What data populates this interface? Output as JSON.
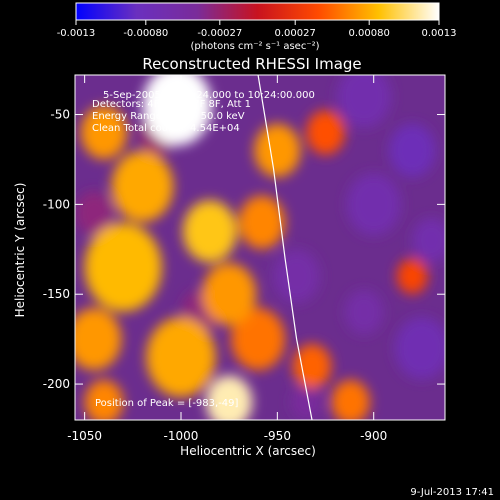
{
  "colorbar": {
    "tick_labels": [
      "-0.0013",
      "-0.00080",
      "-0.00027",
      "0.00027",
      "0.00080",
      "0.0013"
    ],
    "tick_values": [
      -0.0013,
      -0.0008,
      -0.00027,
      0.00027,
      0.0008,
      0.0013
    ],
    "range": [
      -0.0013,
      0.0013
    ],
    "unit_label": "(photons cm⁻² s⁻¹ asec⁻²)",
    "colormap": [
      "#0000ff",
      "#6a2fbf",
      "#7a2c9a",
      "#c8121f",
      "#ff4a00",
      "#ffc000",
      "#ffffff"
    ]
  },
  "chart_data": {
    "type": "heatmap",
    "title": "Reconstructed RHESSI Image",
    "xlabel": "Heliocentric X (arcsec)",
    "ylabel": "Heliocentric Y (arcsec)",
    "xlim": [
      -1055,
      -863
    ],
    "ylim": [
      -220,
      -28
    ],
    "x_ticks": [
      -1050,
      -1000,
      -950,
      -900
    ],
    "x_tick_labels": [
      "-1050",
      "-1000",
      "-950",
      "-900"
    ],
    "y_ticks": [
      -200,
      -150,
      -100,
      -50
    ],
    "y_tick_labels": [
      "-200",
      "-150",
      "-100",
      "-50"
    ],
    "annotations": [
      "5-Sep-2005 10:22:24.000 to 10:24:00.000",
      "Detectors: 4F 5F 6F 7F 8F, Att 1",
      "Energy Range: 25.0 - 50.0 keV",
      "Clean    Total counts: 4.54E+04"
    ],
    "peak_label": "Position of Peak = [-983,-49]",
    "peak": {
      "x": -983,
      "y": -49
    },
    "limb_curve": [
      [
        -960,
        -28
      ],
      [
        -952,
        -80
      ],
      [
        -946,
        -130
      ],
      [
        -940,
        -175
      ],
      [
        -932,
        -220
      ]
    ],
    "blobs": [
      {
        "x": -1002,
        "y": -45,
        "r": 18,
        "v": 1.0
      },
      {
        "x": -1040,
        "y": -60,
        "r": 12,
        "v": 0.55
      },
      {
        "x": -1020,
        "y": -90,
        "r": 16,
        "v": 0.6
      },
      {
        "x": -985,
        "y": -115,
        "r": 14,
        "v": 0.7
      },
      {
        "x": -1030,
        "y": -135,
        "r": 20,
        "v": 0.65
      },
      {
        "x": -975,
        "y": -150,
        "r": 14,
        "v": 0.55
      },
      {
        "x": -1045,
        "y": -175,
        "r": 14,
        "v": 0.55
      },
      {
        "x": -1000,
        "y": -185,
        "r": 18,
        "v": 0.6
      },
      {
        "x": -975,
        "y": -210,
        "r": 12,
        "v": 0.9
      },
      {
        "x": -1040,
        "y": -210,
        "r": 10,
        "v": 0.5
      },
      {
        "x": -950,
        "y": -70,
        "r": 12,
        "v": 0.55
      },
      {
        "x": -958,
        "y": -110,
        "r": 12,
        "v": 0.5
      },
      {
        "x": -960,
        "y": -175,
        "r": 14,
        "v": 0.45
      },
      {
        "x": -925,
        "y": -60,
        "r": 10,
        "v": 0.35
      },
      {
        "x": -932,
        "y": -190,
        "r": 10,
        "v": 0.4
      },
      {
        "x": -912,
        "y": -210,
        "r": 10,
        "v": 0.45
      },
      {
        "x": -880,
        "y": -140,
        "r": 8,
        "v": 0.3
      },
      {
        "x": -1012,
        "y": -60,
        "r": 10,
        "v": -0.2
      },
      {
        "x": -1045,
        "y": -105,
        "r": 10,
        "v": -0.25
      },
      {
        "x": -990,
        "y": -160,
        "r": 10,
        "v": -0.25
      },
      {
        "x": -940,
        "y": -140,
        "r": 12,
        "v": -0.45
      },
      {
        "x": -905,
        "y": -40,
        "r": 14,
        "v": -0.5
      },
      {
        "x": -880,
        "y": -70,
        "r": 12,
        "v": -0.6
      },
      {
        "x": -900,
        "y": -100,
        "r": 14,
        "v": -0.5
      },
      {
        "x": -875,
        "y": -180,
        "r": 14,
        "v": -0.55
      },
      {
        "x": -905,
        "y": -160,
        "r": 10,
        "v": -0.45
      },
      {
        "x": -935,
        "y": -210,
        "r": 8,
        "v": -0.35
      },
      {
        "x": -870,
        "y": -120,
        "r": 10,
        "v": -0.5
      }
    ]
  },
  "footer": {
    "date": "9-Jul-2013 17:41"
  }
}
